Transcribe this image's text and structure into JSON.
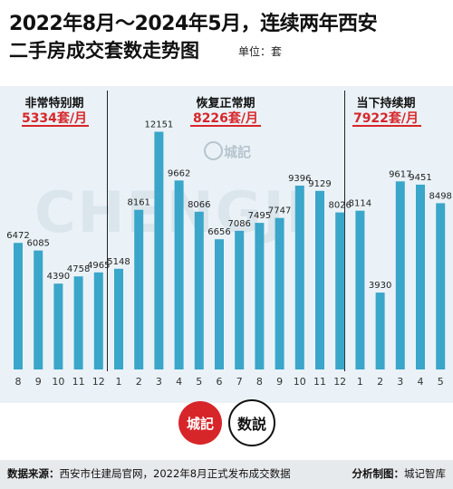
{
  "title_line1": "2022年8月～2024年5月，连续两年西安",
  "title_line2": "二手房成交套数走势图",
  "unit_label": "单位：套",
  "watermark_text": "CHENGJI",
  "watermark_brand": "城記",
  "segments": [
    {
      "label": "非常特别期",
      "avg": "5334套/月"
    },
    {
      "label": "恢复正常期",
      "avg": "8226套/月"
    },
    {
      "label": "当下持续期",
      "avg": "7922套/月"
    }
  ],
  "logos": {
    "left": "城記",
    "right": "数説"
  },
  "footer": {
    "source_label": "数据来源：",
    "source_text": "西安市住建局官网，2022年8月正式发布成交数据",
    "maker_label": "分析制图：",
    "maker_text": "城记智库"
  },
  "chart_data": {
    "type": "bar",
    "title": "2022年8月～2024年5月，连续两年西安二手房成交套数走势图",
    "unit": "套",
    "categories": [
      "8",
      "9",
      "10",
      "11",
      "12",
      "1",
      "2",
      "3",
      "4",
      "5",
      "6",
      "7",
      "8",
      "9",
      "10",
      "11",
      "12",
      "1",
      "2",
      "3",
      "4",
      "5"
    ],
    "values": [
      6472,
      6085,
      4390,
      4758,
      4965,
      5148,
      8161,
      12151,
      9662,
      8066,
      6656,
      7086,
      7495,
      7747,
      9396,
      9129,
      8026,
      8114,
      3930,
      9617,
      9451,
      8498
    ],
    "ylim": [
      0,
      12500
    ],
    "bar_color": "#3aa6c9",
    "grid": false,
    "segments": [
      {
        "label": "非常特别期",
        "avg": 5334,
        "start_index": 0,
        "end_index": 4
      },
      {
        "label": "恢复正常期",
        "avg": 8226,
        "start_index": 5,
        "end_index": 16
      },
      {
        "label": "当下持续期",
        "avg": 7922,
        "start_index": 17,
        "end_index": 21
      }
    ]
  }
}
